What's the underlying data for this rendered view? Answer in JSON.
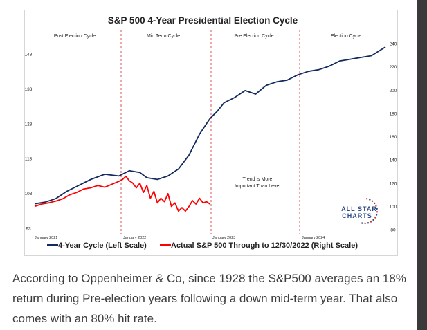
{
  "chart_data": {
    "type": "line",
    "title": "S&P 500 4-Year Presidential Election Cycle",
    "phases": [
      "Post Election Cycle",
      "Mid Term Cycle",
      "Pre Election Cycle",
      "Election Cycle"
    ],
    "x_tick_labels": [
      "January 2021",
      "January 2022",
      "January 2023",
      "January 2024"
    ],
    "left_axis": {
      "ticks": [
        93,
        103,
        113,
        123,
        133,
        143
      ],
      "range": [
        93,
        148
      ]
    },
    "right_axis": {
      "ticks": [
        80,
        100,
        120,
        140,
        160,
        180,
        200,
        220,
        240
      ],
      "range": [
        80,
        240
      ]
    },
    "annotation": [
      "Trend is More",
      "Important Than Level"
    ],
    "series": [
      {
        "name": "4-Year Cycle (Left Scale)",
        "axis": "left",
        "color": "#132a5e",
        "x": [
          0,
          0.03,
          0.06,
          0.09,
          0.12,
          0.16,
          0.2,
          0.24,
          0.27,
          0.3,
          0.32,
          0.35,
          0.38,
          0.41,
          0.44,
          0.47,
          0.5,
          0.52,
          0.54,
          0.57,
          0.6,
          0.63,
          0.66,
          0.69,
          0.72,
          0.75,
          0.78,
          0.81,
          0.84,
          0.87,
          0.9,
          0.93,
          0.96,
          1.0
        ],
        "y": [
          100,
          100.5,
          101.5,
          103.5,
          105,
          107,
          108.5,
          108,
          109.5,
          109,
          107.5,
          107,
          108,
          110,
          114,
          120,
          124.5,
          126.5,
          129,
          130.5,
          132.5,
          131.5,
          134,
          135,
          135.5,
          137,
          138,
          138.5,
          139.5,
          141,
          141.5,
          142,
          142.5,
          145
        ]
      },
      {
        "name": "Actual S&P 500 Through to 12/30/2022 (Right Scale)",
        "axis": "right",
        "color": "#ff0000",
        "x": [
          0,
          0.02,
          0.04,
          0.06,
          0.08,
          0.1,
          0.12,
          0.14,
          0.16,
          0.18,
          0.2,
          0.22,
          0.24,
          0.25,
          0.26,
          0.27,
          0.28,
          0.29,
          0.3,
          0.31,
          0.32,
          0.33,
          0.34,
          0.35,
          0.36,
          0.37,
          0.38,
          0.39,
          0.4,
          0.41,
          0.42,
          0.43,
          0.44,
          0.45,
          0.46,
          0.47,
          0.48,
          0.49,
          0.5
        ],
        "y": [
          100,
          102,
          103,
          104.5,
          106.5,
          110,
          112,
          115,
          116,
          118,
          116.5,
          119,
          121.5,
          123,
          126,
          122,
          120,
          116,
          120,
          112,
          118,
          107,
          113,
          103,
          107,
          104,
          111,
          100,
          103,
          96,
          99,
          96,
          100,
          105,
          102,
          107,
          103,
          104,
          102
        ]
      }
    ]
  },
  "logo": {
    "line1": "ALL STAR",
    "line2": "CHARTS"
  },
  "caption": "According to Oppenheimer & Co, since 1928 the S&P500 averages an 18% return during Pre-election years following a down mid-term year. That also comes with an 80% hit rate.",
  "colors": {
    "navy": "#132a5e",
    "red": "#ff0000",
    "divider": "#e05050",
    "logo_blue": "#2f4a88"
  }
}
